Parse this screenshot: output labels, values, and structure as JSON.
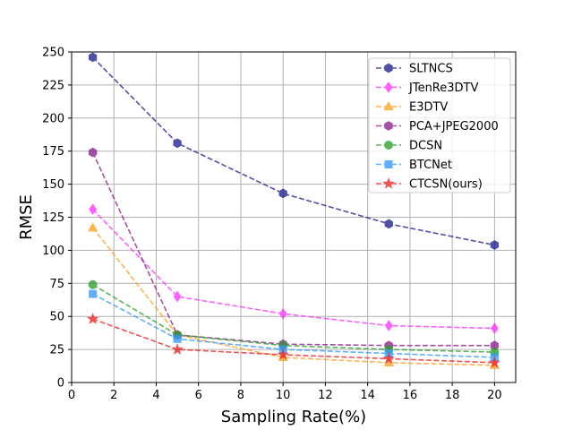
{
  "chart_data": {
    "type": "line",
    "xlabel": "Sampling Rate(%)",
    "ylabel": "RMSE",
    "xlim": [
      0,
      21
    ],
    "ylim": [
      0,
      250
    ],
    "xticks": [
      0,
      2,
      4,
      6,
      8,
      10,
      12,
      14,
      16,
      18,
      20
    ],
    "yticks": [
      0,
      25,
      50,
      75,
      100,
      125,
      150,
      175,
      200,
      225,
      250
    ],
    "grid": true,
    "legend_position": "top-right",
    "x": [
      1,
      5,
      10,
      15,
      20
    ],
    "series": [
      {
        "name": "SLTNCS",
        "values": [
          246,
          181,
          143,
          120,
          104
        ],
        "color": "#1f1f8f",
        "marker": "hexagon"
      },
      {
        "name": "JTenRe3DTV",
        "values": [
          131,
          65,
          52,
          43,
          41
        ],
        "color": "#ff33ff",
        "marker": "diamond"
      },
      {
        "name": "E3DTV",
        "values": [
          117,
          36,
          19,
          15,
          13
        ],
        "color": "#ff9f1f",
        "marker": "triangle"
      },
      {
        "name": "PCA+JPEG2000",
        "values": [
          174,
          36,
          29,
          28,
          28
        ],
        "color": "#8b1f8b",
        "marker": "hexagon"
      },
      {
        "name": "DCSN",
        "values": [
          74,
          36,
          28,
          25,
          23
        ],
        "color": "#2ca02c",
        "marker": "circle"
      },
      {
        "name": "BTCNet",
        "values": [
          67,
          33,
          25,
          22,
          19
        ],
        "color": "#3399ff",
        "marker": "square"
      },
      {
        "name": "CTCSN(ours)",
        "values": [
          48,
          25,
          21,
          18,
          15
        ],
        "color": "#ee2222",
        "marker": "star"
      }
    ]
  }
}
